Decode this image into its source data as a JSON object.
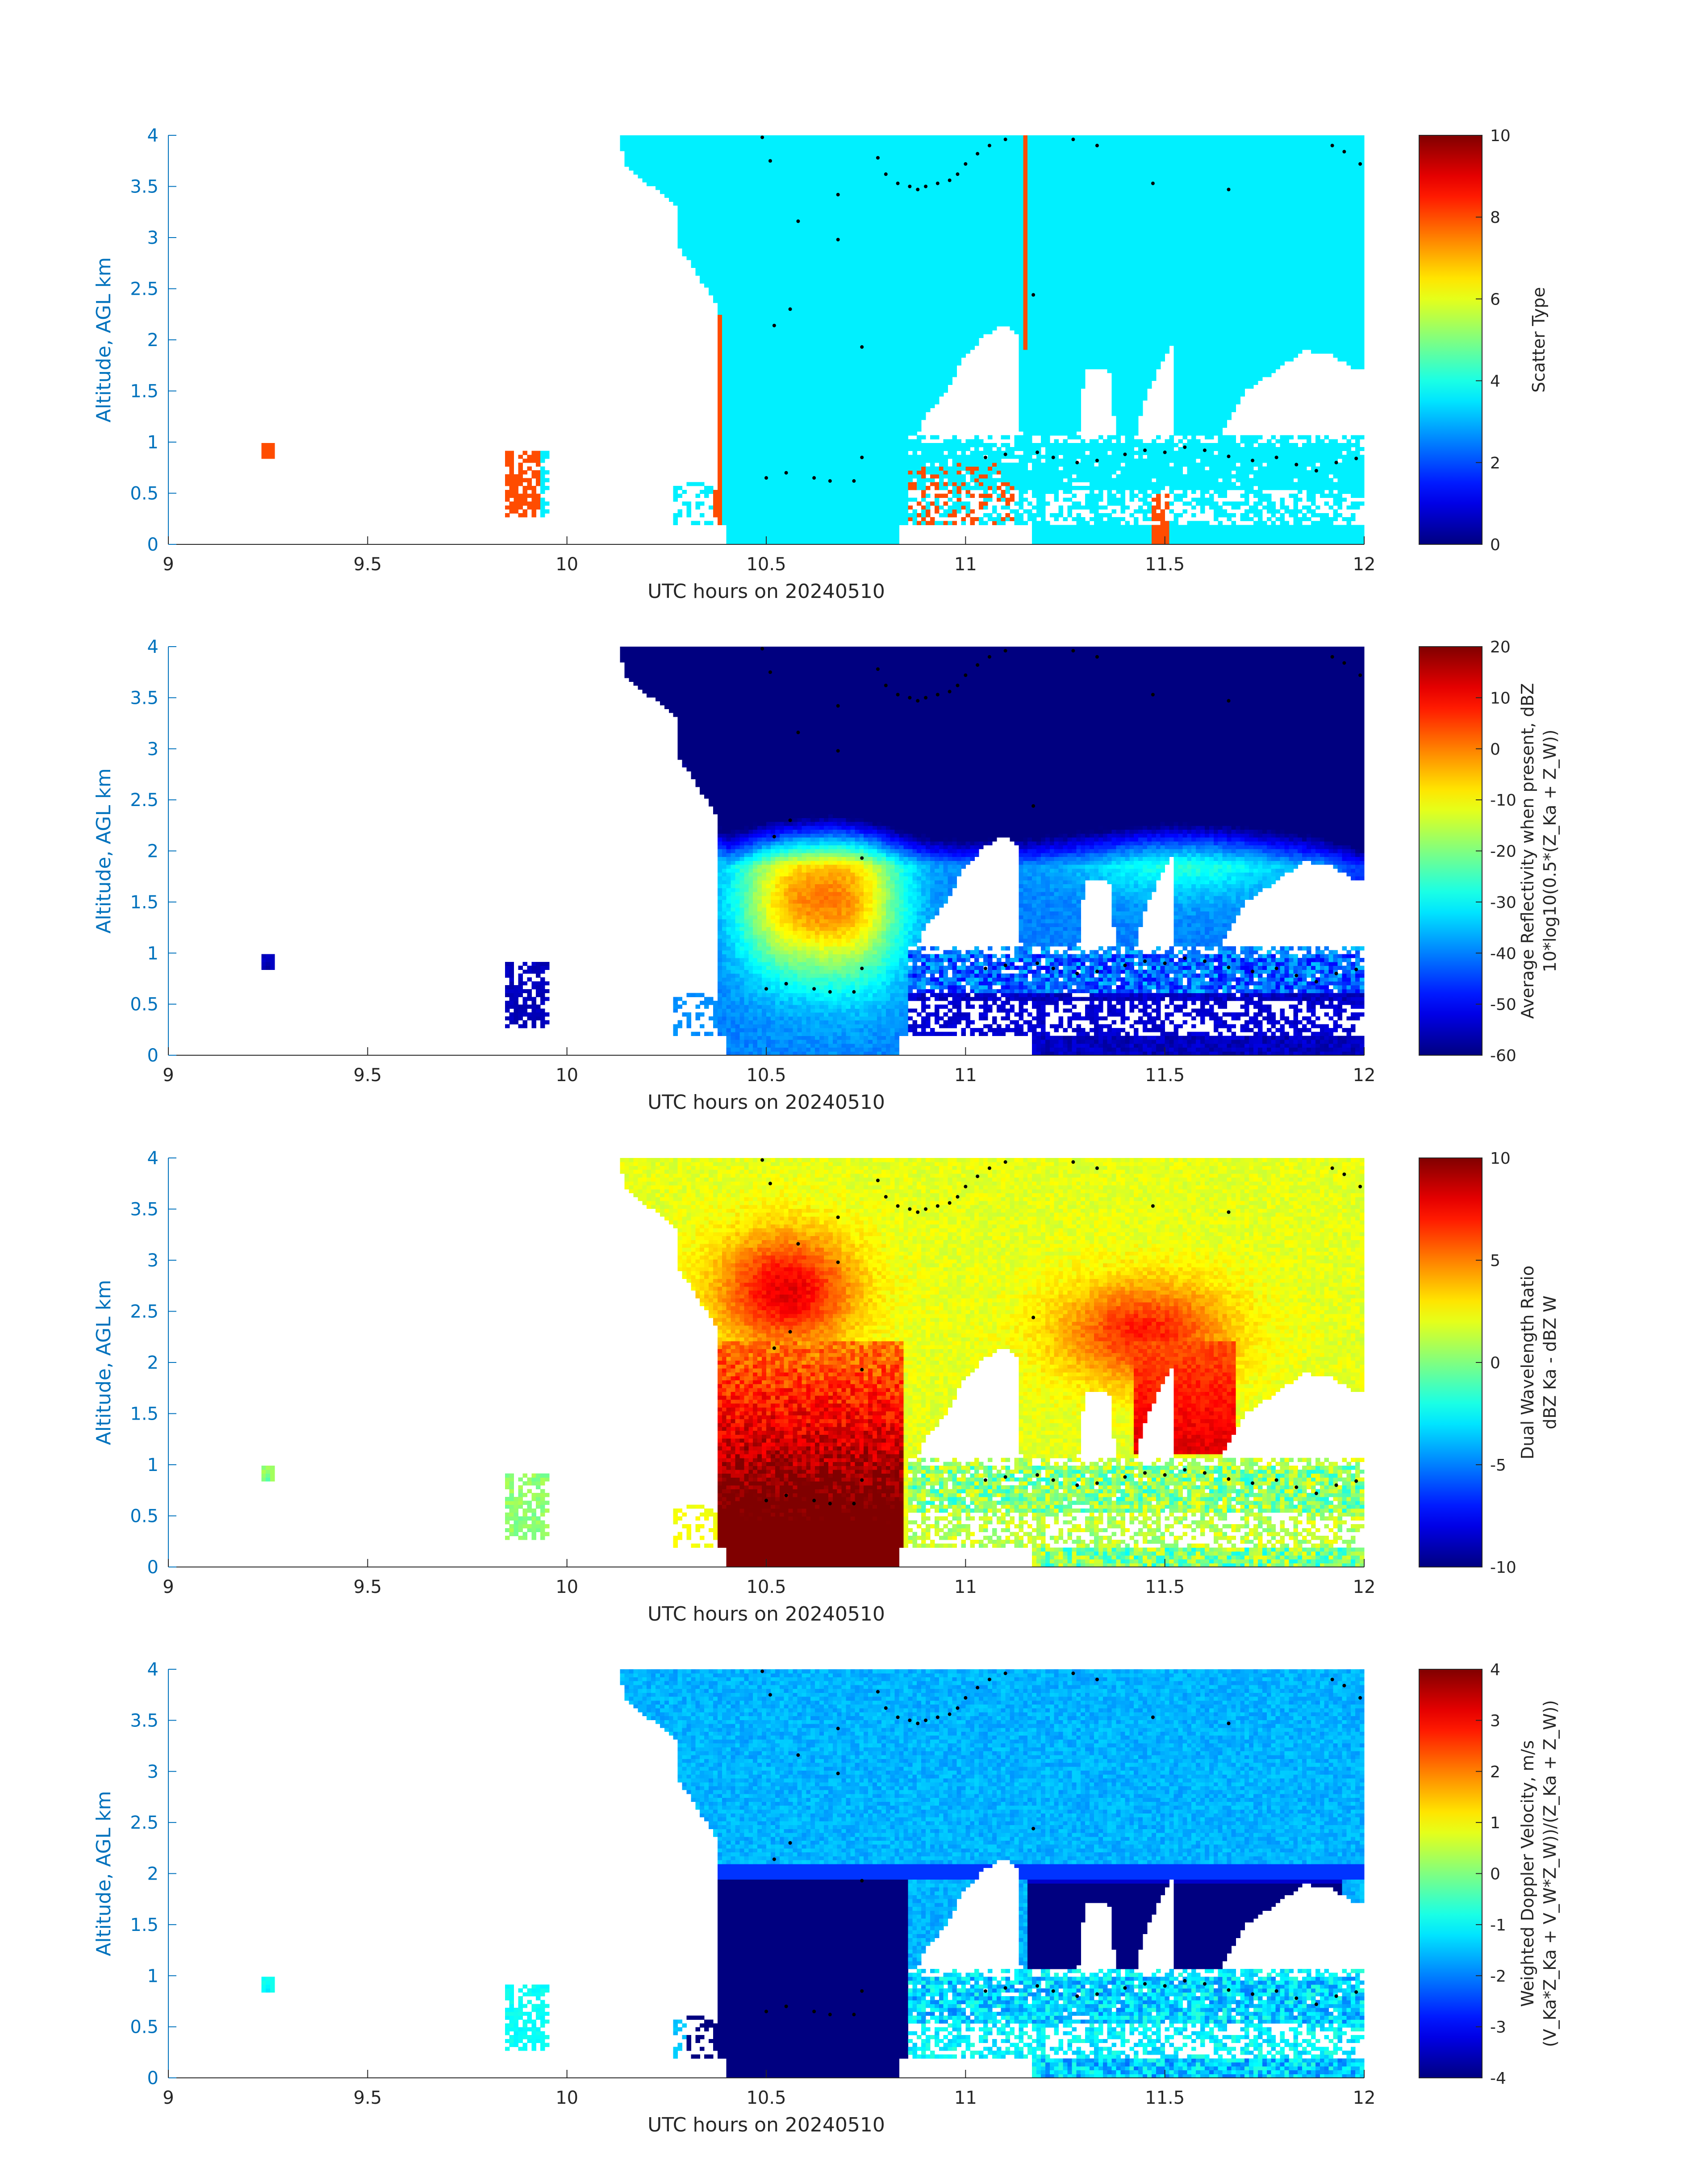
{
  "chart_data": [
    {
      "type": "heatmap",
      "xlabel": "UTC hours on 20240510",
      "ylabel": "Altitude, AGL km",
      "xlim": [
        9,
        12
      ],
      "ylim": [
        0,
        4
      ],
      "xticks": [
        "9",
        "9.5",
        "10",
        "10.5",
        "11",
        "11.5",
        "12"
      ],
      "yticks": [
        "0",
        "0.5",
        "1",
        "1.5",
        "2",
        "2.5",
        "3",
        "3.5",
        "4"
      ],
      "colorbar": {
        "label_lines": [
          "Scatter Type"
        ],
        "range": [
          0,
          10
        ],
        "ticks": [
          "0",
          "2",
          "4",
          "6",
          "8",
          "10"
        ],
        "colormap": "jet"
      }
    },
    {
      "type": "heatmap",
      "xlabel": "UTC hours on 20240510",
      "ylabel": "Altitude, AGL km",
      "xlim": [
        9,
        12
      ],
      "ylim": [
        0,
        4
      ],
      "xticks": [
        "9",
        "9.5",
        "10",
        "10.5",
        "11",
        "11.5",
        "12"
      ],
      "yticks": [
        "0",
        "0.5",
        "1",
        "1.5",
        "2",
        "2.5",
        "3",
        "3.5",
        "4"
      ],
      "colorbar": {
        "label_lines": [
          "Average Reflectivity when present, dBZ",
          "10*log10(0.5*(Z_Ka + Z_W))"
        ],
        "range": [
          -60,
          20
        ],
        "ticks": [
          "-60",
          "-50",
          "-40",
          "-30",
          "-20",
          "-10",
          "0",
          "10",
          "20"
        ],
        "colormap": "jet"
      }
    },
    {
      "type": "heatmap",
      "xlabel": "UTC hours on 20240510",
      "ylabel": "Altitude, AGL km",
      "xlim": [
        9,
        12
      ],
      "ylim": [
        0,
        4
      ],
      "xticks": [
        "9",
        "9.5",
        "10",
        "10.5",
        "11",
        "11.5",
        "12"
      ],
      "yticks": [
        "0",
        "0.5",
        "1",
        "1.5",
        "2",
        "2.5",
        "3",
        "3.5",
        "4"
      ],
      "colorbar": {
        "label_lines": [
          "Dual Wavelength Ratio",
          "dBZ Ka - dBZ W"
        ],
        "range": [
          -10,
          10
        ],
        "ticks": [
          "-10",
          "-5",
          "0",
          "5",
          "10"
        ],
        "colormap": "jet"
      }
    },
    {
      "type": "heatmap",
      "xlabel": "UTC hours on 20240510",
      "ylabel": "Altitude, AGL km",
      "xlim": [
        9,
        12
      ],
      "ylim": [
        0,
        4
      ],
      "xticks": [
        "9",
        "9.5",
        "10",
        "10.5",
        "11",
        "11.5",
        "12"
      ],
      "yticks": [
        "0",
        "0.5",
        "1",
        "1.5",
        "2",
        "2.5",
        "3",
        "3.5",
        "4"
      ],
      "colorbar": {
        "label_lines": [
          "Weighted Doppler Velocity, m/s",
          "(V_Ka*Z_Ka + V_W*Z_W))/(Z_Ka + Z_W))"
        ],
        "range": [
          -4,
          4
        ],
        "ticks": [
          "-4",
          "-3",
          "-2",
          "-1",
          "0",
          "1",
          "2",
          "3",
          "4"
        ],
        "colormap": "jet"
      }
    }
  ],
  "overlay_points": {
    "description_marker": "black dots",
    "points": [
      [
        10.49,
        3.98
      ],
      [
        10.51,
        3.75
      ],
      [
        10.78,
        3.78
      ],
      [
        10.8,
        3.62
      ],
      [
        10.83,
        3.53
      ],
      [
        10.86,
        3.5
      ],
      [
        10.88,
        3.47
      ],
      [
        10.9,
        3.5
      ],
      [
        10.93,
        3.53
      ],
      [
        10.96,
        3.56
      ],
      [
        10.98,
        3.62
      ],
      [
        11.0,
        3.72
      ],
      [
        11.03,
        3.82
      ],
      [
        11.06,
        3.9
      ],
      [
        11.1,
        3.96
      ],
      [
        11.27,
        3.96
      ],
      [
        11.33,
        3.9
      ],
      [
        10.68,
        3.42
      ],
      [
        10.58,
        3.16
      ],
      [
        10.68,
        2.98
      ],
      [
        10.56,
        2.3
      ],
      [
        10.52,
        2.14
      ],
      [
        10.74,
        1.93
      ],
      [
        11.17,
        2.44
      ],
      [
        11.47,
        3.53
      ],
      [
        11.66,
        3.47
      ],
      [
        11.92,
        3.9
      ],
      [
        11.95,
        3.84
      ],
      [
        11.99,
        3.72
      ],
      [
        10.5,
        0.65
      ],
      [
        10.55,
        0.7
      ],
      [
        10.62,
        0.65
      ],
      [
        10.66,
        0.62
      ],
      [
        10.72,
        0.62
      ],
      [
        10.74,
        0.85
      ],
      [
        11.05,
        0.85
      ],
      [
        11.1,
        0.88
      ],
      [
        11.18,
        0.9
      ],
      [
        11.22,
        0.85
      ],
      [
        11.28,
        0.8
      ],
      [
        11.33,
        0.82
      ],
      [
        11.4,
        0.88
      ],
      [
        11.45,
        0.92
      ],
      [
        11.5,
        0.9
      ],
      [
        11.55,
        0.95
      ],
      [
        11.6,
        0.92
      ],
      [
        11.66,
        0.86
      ],
      [
        11.72,
        0.82
      ],
      [
        11.78,
        0.85
      ],
      [
        11.83,
        0.78
      ],
      [
        11.88,
        0.72
      ],
      [
        11.93,
        0.8
      ],
      [
        11.98,
        0.84
      ]
    ]
  }
}
